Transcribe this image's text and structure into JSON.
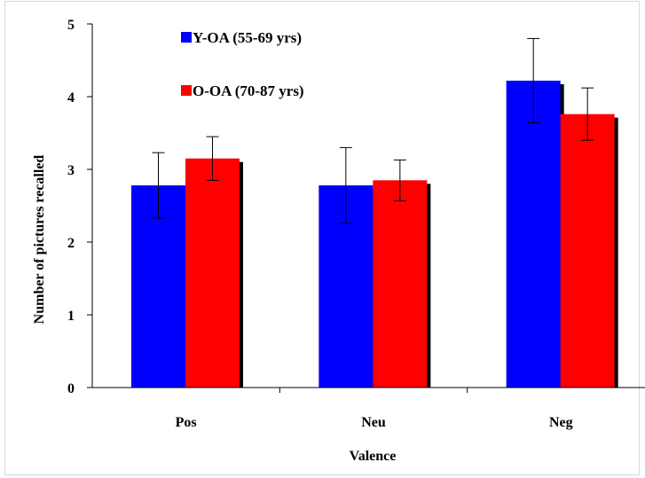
{
  "chart_data": {
    "type": "bar",
    "title": "",
    "xlabel": "Valence",
    "ylabel": "Number of pictures recalled",
    "categories": [
      "Pos",
      "Neu",
      "Neg"
    ],
    "ylim": [
      0,
      5
    ],
    "yticks": [
      "0",
      "1",
      "2",
      "3",
      "4",
      "5"
    ],
    "grid": false,
    "legend_position": "top-left",
    "series": [
      {
        "name": "Y-OA (55-69 yrs)",
        "color": "#0000ff",
        "values": [
          2.78,
          2.78,
          4.22
        ],
        "errors": [
          0.45,
          0.52,
          0.58
        ]
      },
      {
        "name": "O-OA (70-87 yrs)",
        "color": "#ff0000",
        "values": [
          3.15,
          2.85,
          3.76
        ],
        "errors": [
          0.3,
          0.28,
          0.36
        ]
      }
    ]
  }
}
